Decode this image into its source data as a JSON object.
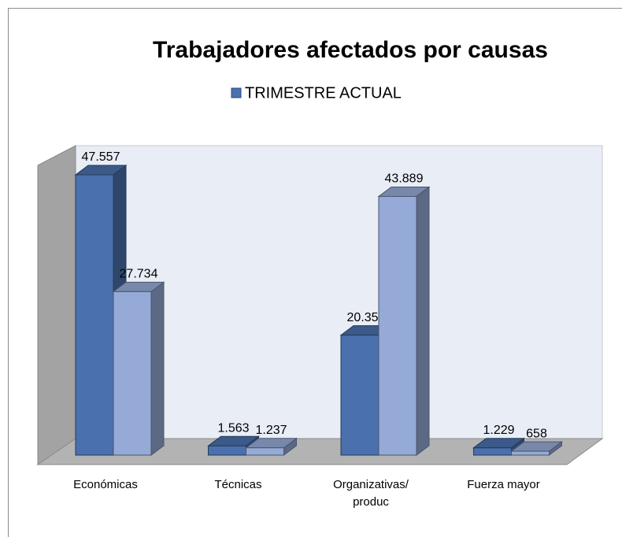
{
  "chart_data": {
    "type": "bar3d",
    "title": "Trabajadores afectados por causas",
    "categories": [
      "Económicas",
      "Técnicas",
      "Organizativas/ produc",
      "Fuerza mayor"
    ],
    "series": [
      {
        "name": "TRIMESTRE ACTUAL",
        "color": "#4a71ad",
        "values": [
          47557,
          1563,
          20354,
          1229
        ],
        "value_labels": [
          "47.557",
          "1.563",
          "20.354",
          "1.229"
        ]
      },
      {
        "color": "#95aad6",
        "values": [
          27734,
          1237,
          43889,
          658
        ],
        "value_labels": [
          "27.734",
          "1.237",
          "43.889",
          "658"
        ]
      }
    ]
  }
}
